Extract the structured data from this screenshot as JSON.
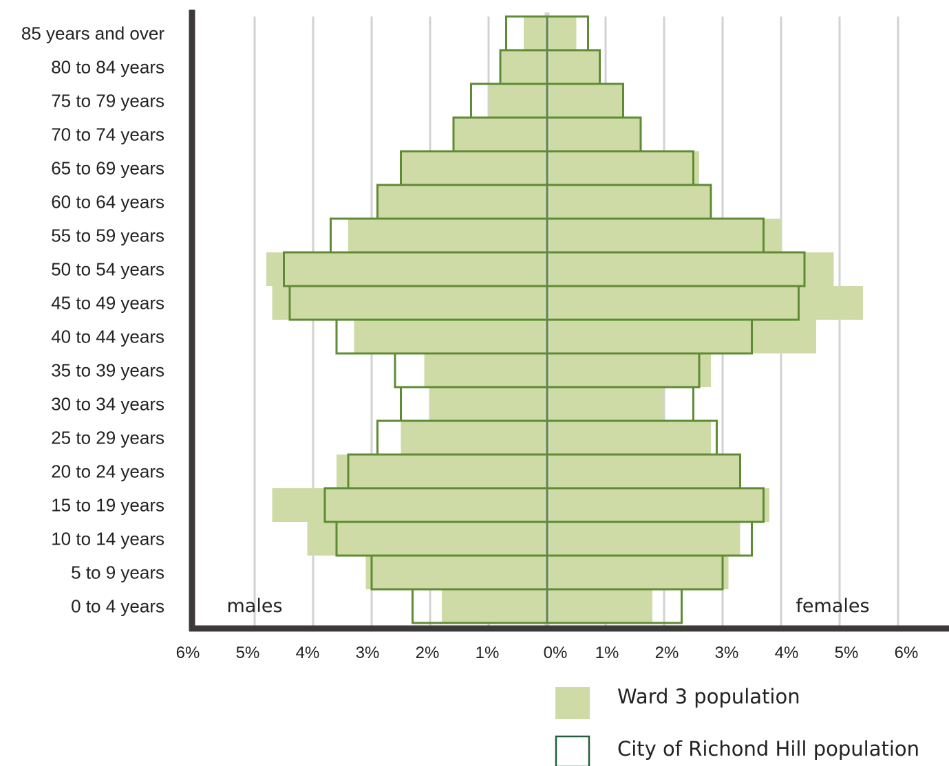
{
  "colors": {
    "ward_fill": "#cfdba6",
    "city_stroke": "#5e8b33",
    "grid": "#d2d2d2",
    "axis": "#3d3839",
    "legend_city_stroke": "#245c3f"
  },
  "chart_data": {
    "type": "bar",
    "orientation": "horizontal",
    "chart_style": "population pyramid",
    "categories": [
      "0 to 4 years",
      "5 to 9 years",
      "10 to 14 years",
      "15 to 19 years",
      "20 to 24 years",
      "25 to 29 years",
      "30 to 34 years",
      "35 to 39 years",
      "40 to 44 years",
      "45 to 49 years",
      "50 to 54 years",
      "55 to 59 years",
      "60 to 64 years",
      "65 to 69 years",
      "70 to 74 years",
      "75 to 79 years",
      "80 to 84 years",
      "85 years and over"
    ],
    "series": [
      {
        "name": "Ward 3 population",
        "style": "filled",
        "males": [
          1.8,
          3.1,
          4.1,
          4.7,
          3.6,
          2.5,
          2.0,
          2.1,
          3.3,
          4.7,
          4.8,
          3.4,
          2.9,
          2.5,
          1.6,
          1.0,
          0.8,
          0.4
        ],
        "females": [
          1.8,
          3.1,
          3.3,
          3.8,
          3.3,
          2.8,
          2.0,
          2.8,
          4.6,
          5.4,
          4.9,
          4.0,
          2.8,
          2.6,
          1.6,
          1.3,
          0.9,
          0.5
        ]
      },
      {
        "name": "City of Richond Hill  population",
        "style": "outline",
        "males": [
          2.3,
          3.0,
          3.6,
          3.8,
          3.4,
          2.9,
          2.5,
          2.6,
          3.6,
          4.4,
          4.5,
          3.7,
          2.9,
          2.5,
          1.6,
          1.3,
          0.8,
          0.7
        ],
        "females": [
          2.3,
          3.0,
          3.5,
          3.7,
          3.3,
          2.9,
          2.5,
          2.6,
          3.5,
          4.3,
          4.4,
          3.7,
          2.8,
          2.5,
          1.6,
          1.3,
          0.9,
          0.7
        ]
      }
    ],
    "x_ticks_left": [
      "6%",
      "5%",
      "4%",
      "3%",
      "2%",
      "1%"
    ],
    "x_tick_center": "0%",
    "x_ticks_right": [
      "1%",
      "2%",
      "3%",
      "4%",
      "5%",
      "6%"
    ],
    "xlim": [
      -6,
      6
    ],
    "side_labels": {
      "left": "males",
      "right": "females"
    },
    "grid": true,
    "legend_position": "bottom-right"
  },
  "legend": {
    "ward_label": "Ward 3 population",
    "city_label": "City of Richond Hill  population"
  }
}
